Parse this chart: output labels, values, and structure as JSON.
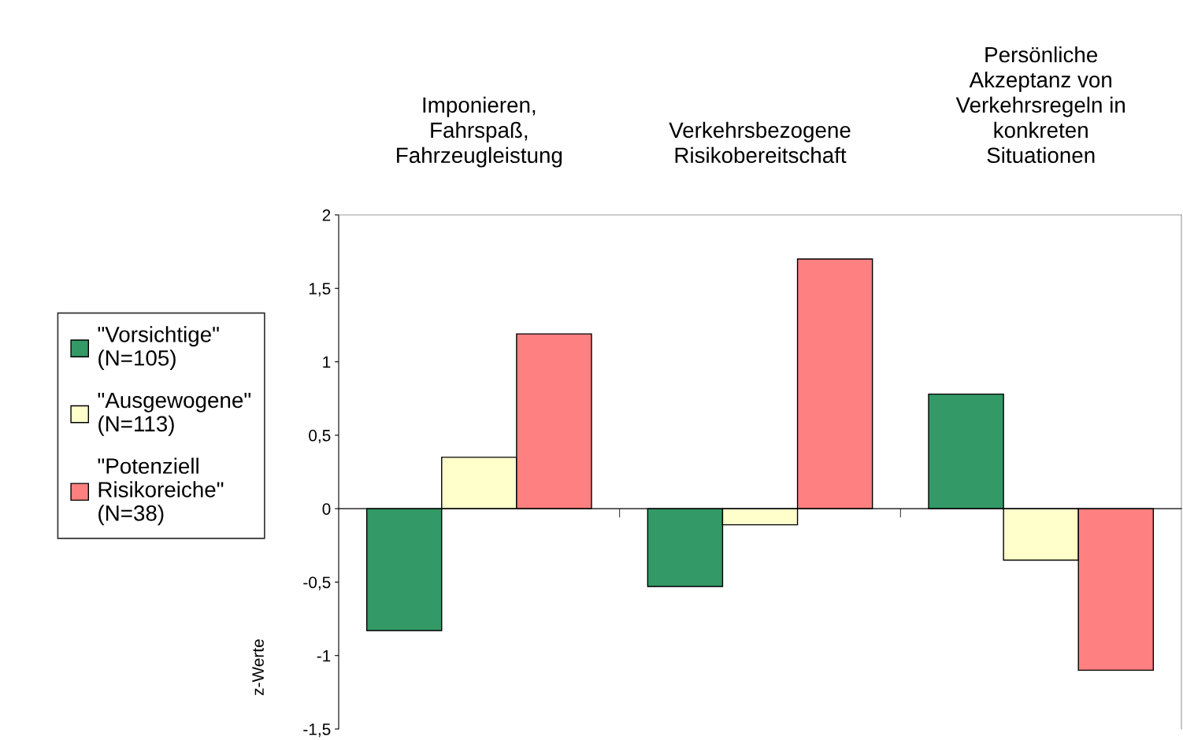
{
  "chart_data": {
    "type": "bar",
    "categories": [
      "Imponieren,\nFahrspaß,\nFahrzeugleistung",
      "Verkehrsbezogene\nRisikobereitschaft",
      "Persönliche\nAkzeptanz von\nVerkehrsregeln in\nkonkreten\nSituationen"
    ],
    "series": [
      {
        "name": "\"Vorsichtige\"\n(N=105)",
        "color": "#339966",
        "values": [
          -0.83,
          -0.53,
          0.78
        ]
      },
      {
        "name": "\"Ausgewogene\"\n(N=113)",
        "color": "#ffffcc",
        "values": [
          0.35,
          -0.11,
          -0.35
        ]
      },
      {
        "name": "\"Potenziell\nRisikoreiche\"\n(N=38)",
        "color": "#ff8080",
        "values": [
          1.19,
          1.7,
          -1.1
        ]
      }
    ],
    "ylabel": "z-Werte",
    "ylim": [
      -1.5,
      2
    ],
    "yticks": [
      {
        "value": -1.5,
        "label": "-1,5"
      },
      -1,
      {
        "value": -0.5,
        "label": "-0,5"
      },
      0,
      {
        "value": 0.5,
        "label": "0,5"
      },
      1,
      {
        "value": 1.5,
        "label": "1,5"
      },
      2
    ],
    "legend": "left"
  }
}
